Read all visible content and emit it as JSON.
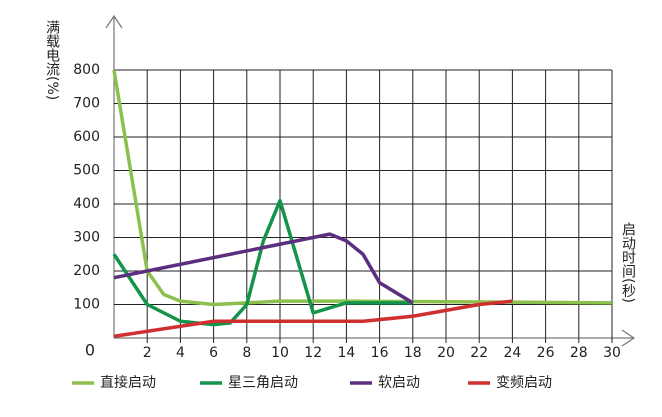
{
  "chart_data": {
    "type": "line",
    "y_label": "满载电流(%)",
    "x_label": "启动时间(秒)",
    "xlim": [
      0,
      30
    ],
    "xticks": [
      0,
      2,
      4,
      6,
      8,
      10,
      12,
      14,
      16,
      18,
      20,
      22,
      24,
      26,
      28,
      30
    ],
    "ylim": [
      0,
      800
    ],
    "yticks": [
      100,
      200,
      300,
      400,
      500,
      600,
      700,
      800
    ],
    "grid": true,
    "legend": "bottom",
    "series": [
      {
        "name": "直接启动",
        "color": "#8cc04d",
        "x": [
          0,
          2,
          3,
          4,
          6,
          8,
          10,
          14,
          30
        ],
        "values": [
          800,
          200,
          130,
          110,
          100,
          105,
          110,
          110,
          105
        ]
      },
      {
        "name": "星三角启动",
        "color": "#14934b",
        "x": [
          0,
          2,
          4,
          6,
          7,
          8,
          9,
          10,
          12,
          14,
          18
        ],
        "values": [
          250,
          100,
          50,
          40,
          45,
          100,
          290,
          410,
          75,
          105,
          105
        ]
      },
      {
        "name": "软启动",
        "color": "#5b2e80",
        "x": [
          0,
          13,
          14,
          15,
          16,
          18
        ],
        "values": [
          180,
          310,
          290,
          250,
          165,
          105
        ]
      },
      {
        "name": "变频启动",
        "color": "#d02f2f",
        "x": [
          0,
          6,
          15,
          18,
          22,
          24
        ],
        "values": [
          5,
          50,
          50,
          65,
          100,
          110
        ]
      }
    ]
  }
}
